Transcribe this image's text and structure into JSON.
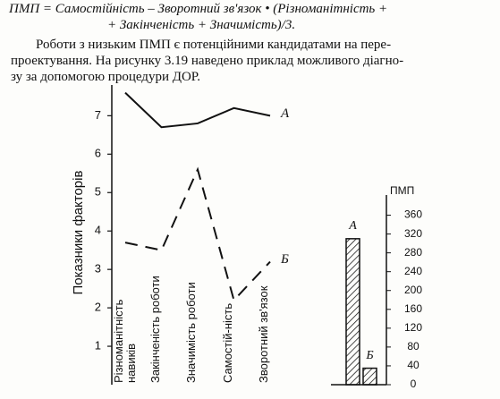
{
  "text": {
    "formula_lines": [
      "ПМП = Самостійність – Зворотний зв'язок • (Різноманітність +",
      "+ Закінченість + Значимість)/3."
    ],
    "paragraph_lines": [
      "Роботи з низьким ПМП є потенційними кандидатами на пере-",
      "проектування. На рисунку 3.19 наведено приклад можливого діагно-",
      "зу за допомогою процедури ДОР."
    ]
  },
  "chart_data": [
    {
      "type": "line",
      "ylabel": "Показники факторів",
      "categories": [
        "Різноманітність навиків",
        "Закінченість роботи",
        "Значимість роботи",
        "Самостій-ність",
        "Зворотний зв'язок"
      ],
      "series": [
        {
          "name": "А",
          "color": "#111111",
          "line_style": "solid",
          "values": [
            7.6,
            6.7,
            6.8,
            7.2,
            7.0
          ]
        },
        {
          "name": "Б",
          "color": "#111111",
          "line_style": "dashed",
          "values": [
            3.7,
            3.5,
            5.6,
            2.2,
            3.2
          ]
        }
      ],
      "ylim": [
        0,
        7.8
      ],
      "yticks": [
        1,
        2,
        3,
        4,
        5,
        6,
        7
      ]
    },
    {
      "type": "bar",
      "ylabel": "ПМП",
      "categories": [
        "А",
        "Б"
      ],
      "values": [
        310,
        35
      ],
      "color": "#111111",
      "ylim": [
        0,
        380
      ],
      "yticks": [
        0,
        40,
        80,
        120,
        160,
        200,
        240,
        280,
        320,
        360
      ]
    }
  ]
}
